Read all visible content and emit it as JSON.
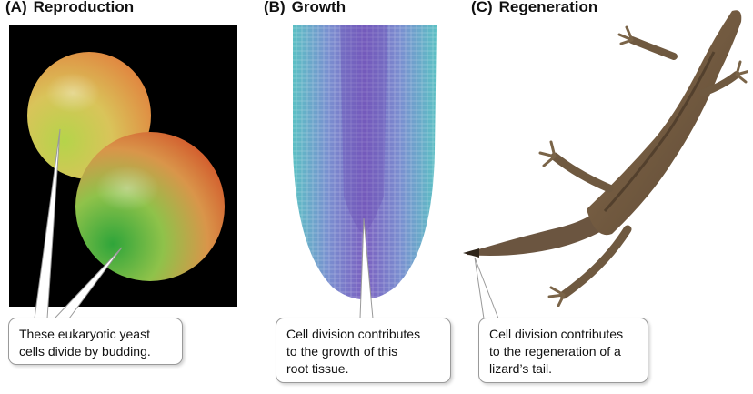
{
  "panels": [
    {
      "letter": "(A)",
      "title": "Reproduction",
      "caption_lines": [
        "These eukaryotic yeast",
        "cells divide by budding."
      ]
    },
    {
      "letter": "(B)",
      "title": "Growth",
      "caption_lines": [
        "Cell division contributes",
        "to the growth of this",
        "root tissue."
      ]
    },
    {
      "letter": "(C)",
      "title": "Regeneration",
      "caption_lines": [
        "Cell division contributes",
        "to the regeneration of a",
        "lizard’s tail."
      ]
    }
  ],
  "colors": {
    "yeast_background": "#000000",
    "yeast_green": "#3fae3a",
    "yeast_orange": "#e0743a",
    "root_cyan": "#4fb7c6",
    "root_purple": "#7a62c0",
    "lizard_brown": "#6b5238"
  }
}
